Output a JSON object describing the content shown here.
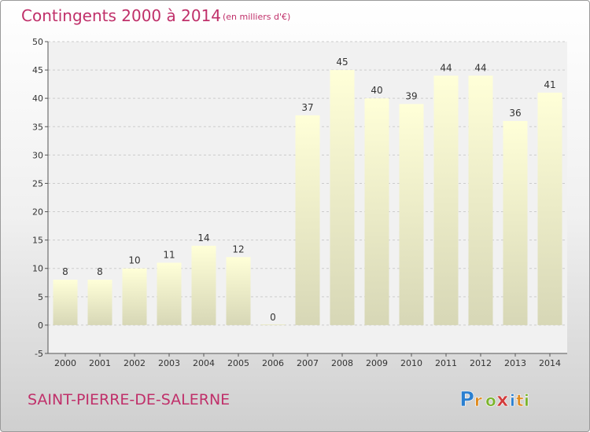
{
  "chart_data": {
    "type": "bar",
    "title": "Contingents 2000 à 2014",
    "subtitle": "(en milliers d'€)",
    "categories": [
      "2000",
      "2001",
      "2002",
      "2003",
      "2004",
      "2005",
      "2006",
      "2007",
      "2008",
      "2009",
      "2010",
      "2011",
      "2012",
      "2013",
      "2014"
    ],
    "values": [
      8,
      8,
      10,
      11,
      14,
      12,
      0,
      37,
      45,
      40,
      39,
      44,
      44,
      36,
      41
    ],
    "ylim": [
      -5,
      50
    ],
    "yticks": [
      -5,
      0,
      5,
      10,
      15,
      20,
      25,
      30,
      35,
      40,
      45,
      50
    ],
    "grid": true,
    "xlabel": "",
    "ylabel": "",
    "colors": {
      "bar_top": "#ffffd8",
      "bar_bottom": "#d7d7b6",
      "plot_bg": "#f1f1f1"
    }
  },
  "footer": {
    "place": "SAINT-PIERRE-DE-SALERNE",
    "brand": "Proxiti"
  }
}
